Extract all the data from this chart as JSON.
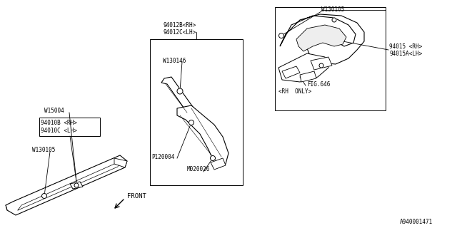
{
  "background_color": "#ffffff",
  "diagram_id": "A940001471",
  "text_color": "#000000",
  "line_color": "#000000",
  "fs_small": 5.5,
  "fs_front": 6.5,
  "labels": {
    "94010BC": "94010B <RH>\n94010C <LH>",
    "W15004": "W15004",
    "W130105_left": "W130105",
    "94012BC": "94012B<RH>\n94012C<LH>",
    "W130146": "W130146",
    "P120004": "P120004",
    "M020026": "M020026",
    "W130105_top": "W130105",
    "94015": "94015 <RH>\n94015A<LH>",
    "FIG646": "FIG.646",
    "RH_ONLY": "<RH  ONLY>"
  }
}
